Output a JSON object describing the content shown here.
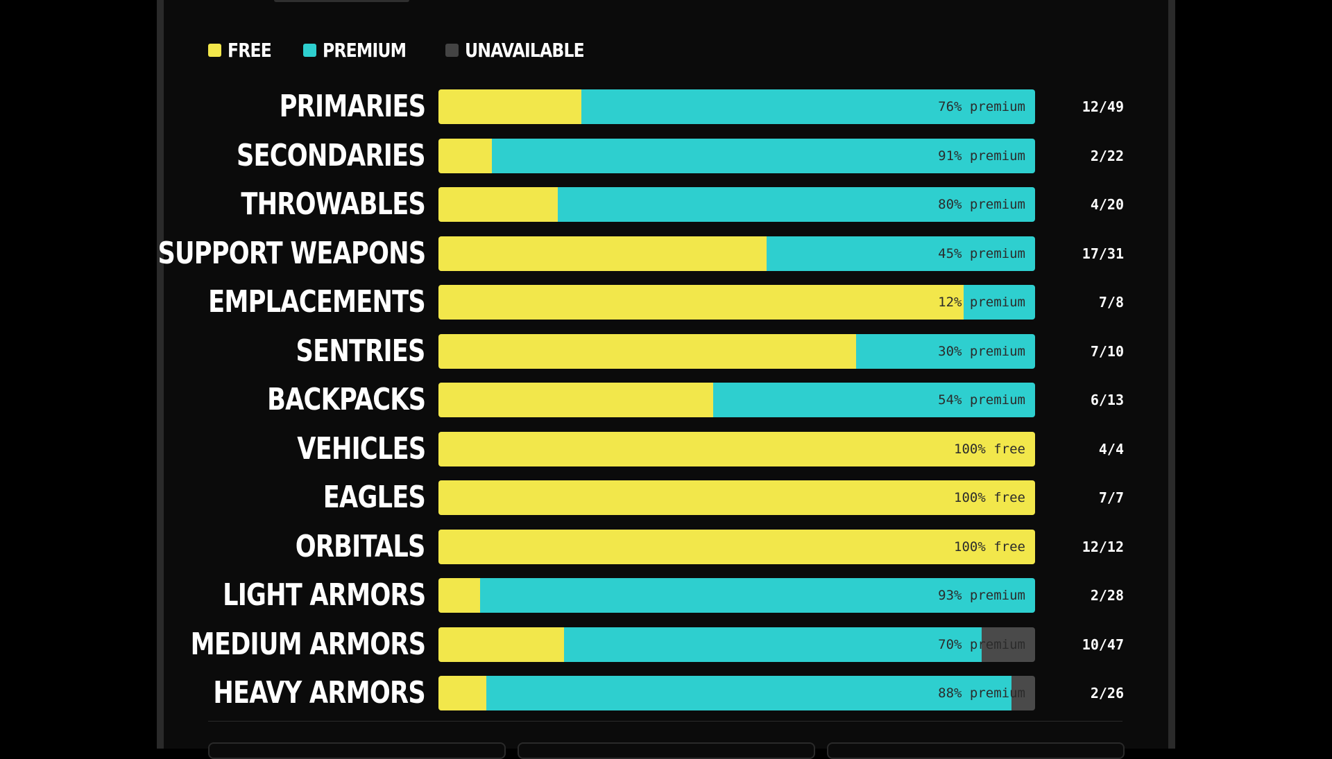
{
  "legend": [
    {
      "label": "FREE",
      "color": "#f2e74b"
    },
    {
      "label": "PREMIUM",
      "color": "#2ecfcf"
    },
    {
      "label": "UNAVAILABLE",
      "color": "#444444"
    }
  ],
  "colors": {
    "free": "#f2e74b",
    "premium": "#2ecfcf",
    "unavailable": "#4a4a4a"
  },
  "chart_data": {
    "type": "bar",
    "orientation": "horizontal",
    "stacked": true,
    "normalized": true,
    "categories": [
      "PRIMARIES",
      "SECONDARIES",
      "THROWABLES",
      "SUPPORT WEAPONS",
      "EMPLACEMENTS",
      "SENTRIES",
      "BACKPACKS",
      "VEHICLES",
      "EAGLES",
      "ORBITALS",
      "LIGHT ARMORS",
      "MEDIUM ARMORS",
      "HEAVY ARMORS"
    ],
    "series": [
      {
        "name": "FREE",
        "values": [
          24,
          9,
          20,
          55,
          88,
          70,
          46,
          100,
          100,
          100,
          7,
          21,
          8
        ]
      },
      {
        "name": "PREMIUM",
        "values": [
          76,
          91,
          80,
          45,
          12,
          30,
          54,
          0,
          0,
          0,
          93,
          70,
          88
        ]
      },
      {
        "name": "UNAVAILABLE",
        "values": [
          0,
          0,
          0,
          0,
          0,
          0,
          0,
          0,
          0,
          0,
          0,
          9,
          4
        ]
      }
    ],
    "bar_labels": [
      "76% premium",
      "91% premium",
      "80% premium",
      "45% premium",
      "12% premium",
      "30% premium",
      "54% premium",
      "100% free",
      "100% free",
      "100% free",
      "93% premium",
      "70% premium",
      "88% premium"
    ],
    "counts": [
      "12/49",
      "2/22",
      "4/20",
      "17/31",
      "7/8",
      "7/10",
      "6/13",
      "4/4",
      "7/7",
      "12/12",
      "2/28",
      "10/47",
      "2/26"
    ],
    "xlim": [
      0,
      100
    ],
    "legend_position": "top-left",
    "grid": false
  }
}
